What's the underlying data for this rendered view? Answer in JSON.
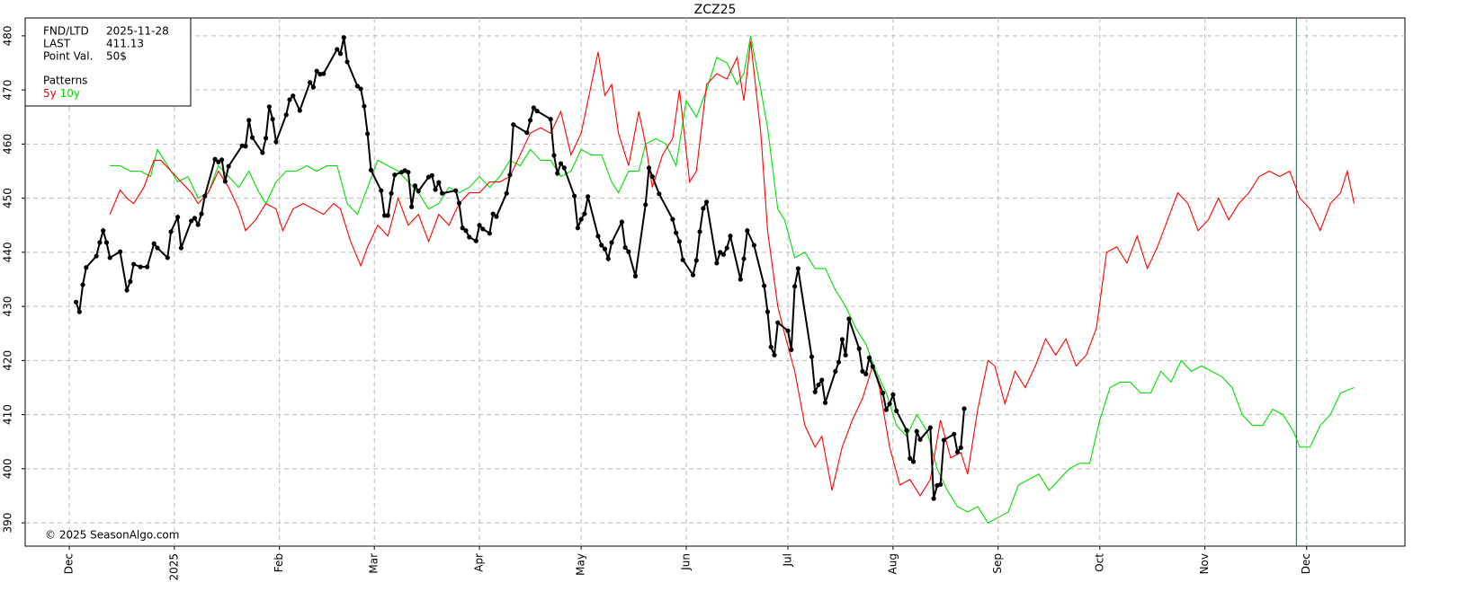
{
  "chart_data": {
    "type": "line",
    "title": "ZCZ25",
    "xlim": [
      -13,
      394
    ],
    "ylim": [
      385.7,
      483.3
    ],
    "xticks": [
      {
        "value": 0,
        "label": "Dec"
      },
      {
        "value": 31,
        "label": "2025"
      },
      {
        "value": 62,
        "label": "Feb"
      },
      {
        "value": 90,
        "label": "Mar"
      },
      {
        "value": 121,
        "label": "Apr"
      },
      {
        "value": 151,
        "label": "May"
      },
      {
        "value": 182,
        "label": "Jun"
      },
      {
        "value": 212,
        "label": "Jul"
      },
      {
        "value": 243,
        "label": "Aug"
      },
      {
        "value": 274,
        "label": "Sep"
      },
      {
        "value": 304,
        "label": "Oct"
      },
      {
        "value": 335,
        "label": "Nov"
      },
      {
        "value": 365,
        "label": "Dec"
      }
    ],
    "yticks": [
      390,
      400,
      410,
      420,
      430,
      440,
      450,
      460,
      470,
      480
    ],
    "grid": true,
    "info": {
      "rows": [
        [
          "FND/LTD",
          "2025-11-28"
        ],
        [
          "LAST",
          "411.13"
        ],
        [
          "Point Val.",
          "50$"
        ]
      ],
      "first_label_color": "#008b8b",
      "patterns_label": "Patterns"
    },
    "marker_line": {
      "x": 362,
      "color": "#008b8b"
    },
    "copyright": "© 2025 SeasonAlgo.com",
    "series": [
      {
        "color": "#000000",
        "markers": true,
        "x": [
          2,
          3,
          4,
          5,
          8,
          9,
          10,
          11,
          12,
          15,
          17,
          18,
          19,
          21,
          23,
          25,
          26,
          29,
          30,
          32,
          33,
          36,
          37,
          38,
          39,
          40,
          43,
          44,
          45,
          46,
          47,
          51,
          52,
          53,
          54,
          57,
          58,
          59,
          60,
          61,
          64,
          65,
          66,
          68,
          71,
          72,
          73,
          74,
          75,
          79,
          80,
          81,
          82,
          85,
          86,
          87,
          88,
          89,
          92,
          93,
          94,
          95,
          96,
          98,
          99,
          100,
          101,
          102,
          103,
          106,
          107,
          108,
          109,
          110,
          114,
          115,
          116,
          117,
          118,
          120,
          121,
          122,
          124,
          125,
          126,
          129,
          130,
          131,
          135,
          136,
          137,
          138,
          142,
          143,
          144,
          145,
          146,
          149,
          150,
          151,
          152,
          153,
          156,
          157,
          158,
          159,
          160,
          163,
          164,
          165,
          167,
          170,
          171,
          172,
          174,
          178,
          179,
          180,
          181,
          184,
          185,
          186,
          187,
          188,
          191,
          192,
          193,
          194,
          195,
          198,
          199,
          200,
          202,
          205,
          206,
          207,
          208,
          209,
          212,
          213,
          214,
          215,
          219,
          220,
          221,
          222,
          223,
          226,
          227,
          228,
          229,
          230,
          233,
          234,
          235,
          236,
          237,
          240,
          241,
          242,
          243,
          244,
          247,
          248,
          249,
          250,
          251,
          254,
          255,
          256,
          257,
          258,
          261,
          262,
          263,
          264
        ],
        "values": [
          430.8,
          429,
          434,
          437.2,
          439.3,
          441.8,
          444,
          441.8,
          439,
          440.1,
          433,
          434.6,
          437.8,
          437.3,
          437.3,
          441.6,
          440.8,
          439,
          443.8,
          446.5,
          440.8,
          445.8,
          446.3,
          445.1,
          447.1,
          450.4,
          457.2,
          456.7,
          457.1,
          453.1,
          455.9,
          459.7,
          459.6,
          464.4,
          461.2,
          458.4,
          461.1,
          466.9,
          464.6,
          460.4,
          465.4,
          468.2,
          468.9,
          466.2,
          471.4,
          470.5,
          473.5,
          472.9,
          473,
          477.5,
          476.7,
          479.7,
          475.2,
          470.7,
          470.2,
          467,
          461.9,
          455.2,
          451.4,
          446.8,
          446.8,
          450.9,
          454.3,
          454.8,
          455.1,
          454.8,
          448.4,
          452.3,
          451.3,
          453.9,
          454.2,
          451.6,
          452.9,
          450.9,
          451.4,
          449.1,
          444.5,
          444,
          442.8,
          442.1,
          445,
          444.3,
          443.5,
          447.1,
          446.6,
          450.9,
          454.3,
          463.6,
          462.1,
          464.4,
          466.7,
          466.1,
          464.6,
          457.9,
          454.6,
          456.4,
          455.6,
          450.4,
          444.5,
          446.1,
          447.1,
          450.3,
          443,
          441.3,
          440.6,
          438.8,
          441.8,
          445.6,
          440.9,
          440.1,
          435.6,
          448.8,
          455.6,
          454,
          450.8,
          446.1,
          443.6,
          442,
          438.6,
          435.8,
          438.5,
          443.8,
          448.1,
          449.3,
          438,
          440,
          439.6,
          440.8,
          443,
          435,
          438.8,
          444,
          441.3,
          433.8,
          429,
          422.5,
          421,
          427,
          425.5,
          422,
          433.7,
          437,
          420.7,
          414.2,
          415.5,
          416.4,
          412.2,
          418,
          419.7,
          423.9,
          421,
          427.7,
          422.2,
          418,
          417.5,
          420.5,
          418.9,
          414,
          410.9,
          412,
          413.7,
          410.7,
          407.1,
          401.9,
          401.3,
          406.9,
          405.4,
          407.6,
          394.5,
          396.9,
          397.1,
          405.3,
          406.4,
          403.1,
          403.9,
          411.1
        ]
      },
      {
        "name": "5y",
        "color": "#ff0000",
        "markers": false,
        "x": [
          12,
          15,
          17,
          19,
          22,
          25,
          27,
          30,
          33,
          36,
          38,
          41,
          44,
          47,
          50,
          52,
          55,
          58,
          61,
          63,
          66,
          69,
          72,
          75,
          78,
          80,
          83,
          86,
          88,
          91,
          94,
          97,
          100,
          103,
          106,
          109,
          112,
          115,
          118,
          121,
          124,
          127,
          130,
          133,
          136,
          139,
          142,
          145,
          148,
          151,
          154,
          156,
          158,
          160,
          162,
          165,
          168,
          170,
          172,
          175,
          178,
          180,
          183,
          185,
          188,
          191,
          194,
          197,
          199,
          201,
          204,
          206,
          209,
          211,
          214,
          217,
          220,
          222,
          225,
          228,
          231,
          234,
          237,
          239,
          242,
          245,
          248,
          251,
          254,
          257,
          260,
          263,
          265,
          268,
          271,
          273,
          276,
          279,
          282,
          285,
          288,
          291,
          294,
          297,
          300,
          303,
          306,
          309,
          312,
          315,
          318,
          321,
          324,
          327,
          330,
          333,
          336,
          339,
          342,
          345,
          348,
          351,
          354,
          357,
          360,
          363,
          366,
          369,
          372,
          375,
          377,
          379
        ],
        "values": [
          447,
          451.5,
          450,
          449,
          452,
          457,
          457,
          455,
          453,
          451,
          449,
          451,
          455,
          452,
          448,
          444,
          446,
          449,
          448,
          444,
          448,
          449,
          448,
          447,
          449,
          448,
          442,
          437.5,
          441,
          445,
          443,
          450,
          445,
          447,
          442,
          447,
          445,
          449,
          451,
          451,
          453,
          453,
          454,
          458,
          462,
          463,
          462,
          466,
          458,
          462,
          471,
          477,
          469,
          471,
          462,
          456,
          466,
          460,
          452,
          458,
          461,
          470,
          453,
          455,
          471,
          473,
          472,
          476,
          468,
          479,
          462,
          444,
          430,
          425,
          418,
          408,
          404,
          406,
          396,
          404,
          409,
          413,
          419,
          415,
          404,
          397,
          398,
          395,
          398,
          409,
          402,
          403,
          399,
          411,
          420,
          419,
          412,
          418,
          415,
          419,
          424,
          421,
          424,
          419,
          421,
          426,
          440,
          441,
          438,
          443,
          437,
          441,
          446,
          451,
          449,
          444,
          446,
          450,
          446,
          449,
          451,
          454,
          455,
          454,
          455,
          450,
          448,
          444,
          449,
          451,
          455,
          449
        ]
      },
      {
        "name": "10y",
        "color": "#00e000",
        "markers": false,
        "x": [
          12,
          15,
          18,
          21,
          24,
          26,
          29,
          32,
          35,
          38,
          41,
          44,
          47,
          50,
          53,
          56,
          58,
          61,
          64,
          67,
          70,
          73,
          76,
          79,
          82,
          85,
          88,
          91,
          94,
          97,
          100,
          103,
          106,
          109,
          112,
          115,
          118,
          121,
          124,
          127,
          130,
          133,
          136,
          139,
          142,
          145,
          148,
          151,
          154,
          157,
          160,
          162,
          165,
          168,
          170,
          173,
          176,
          179,
          182,
          185,
          188,
          191,
          194,
          197,
          199,
          201,
          204,
          206,
          209,
          211,
          214,
          217,
          220,
          223,
          226,
          229,
          232,
          235,
          238,
          241,
          244,
          247,
          250,
          253,
          256,
          259,
          262,
          265,
          268,
          271,
          274,
          277,
          280,
          283,
          286,
          289,
          292,
          295,
          298,
          301,
          304,
          307,
          310,
          313,
          316,
          319,
          322,
          325,
          328,
          331,
          334,
          337,
          340,
          343,
          346,
          349,
          352,
          355,
          358,
          361,
          363,
          366,
          369,
          372,
          375,
          379
        ],
        "values": [
          456,
          456,
          455,
          455,
          454,
          459,
          456,
          453,
          454,
          450,
          451,
          456,
          454,
          452,
          455,
          451,
          449,
          453,
          455,
          455,
          456,
          455,
          456,
          456,
          449,
          447,
          452,
          457,
          456,
          455,
          453,
          451,
          448,
          449,
          452,
          451,
          452,
          454,
          452,
          454,
          457,
          456,
          459,
          457,
          457,
          454,
          455,
          459,
          458,
          458,
          453,
          451,
          455,
          455,
          460,
          461,
          460,
          456,
          468,
          465,
          470,
          476,
          475,
          471,
          473,
          480,
          470,
          463,
          448,
          446,
          439,
          440,
          437,
          437,
          433,
          430,
          426,
          423,
          418,
          414,
          408,
          406,
          410,
          407,
          400,
          396,
          393,
          392,
          393,
          390,
          391,
          392,
          397,
          398,
          399,
          396,
          398,
          400,
          401,
          401,
          409,
          415,
          416,
          416,
          414,
          414,
          418,
          416,
          420,
          418,
          419,
          418,
          417,
          415,
          410,
          408,
          408,
          411,
          410,
          407,
          404,
          404,
          408,
          410,
          414,
          415
        ]
      }
    ]
  }
}
